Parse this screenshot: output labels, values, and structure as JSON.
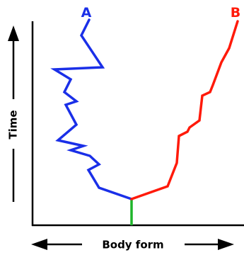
{
  "labels": {
    "lineage_a": "A",
    "lineage_b": "B",
    "y_axis": "Time",
    "x_axis": "Body form"
  },
  "colors": {
    "lineage_a": "#1a2fe8",
    "lineage_b": "#ff1a0a",
    "ancestor_stem": "#1fb52a",
    "axes": "#000000"
  }
}
